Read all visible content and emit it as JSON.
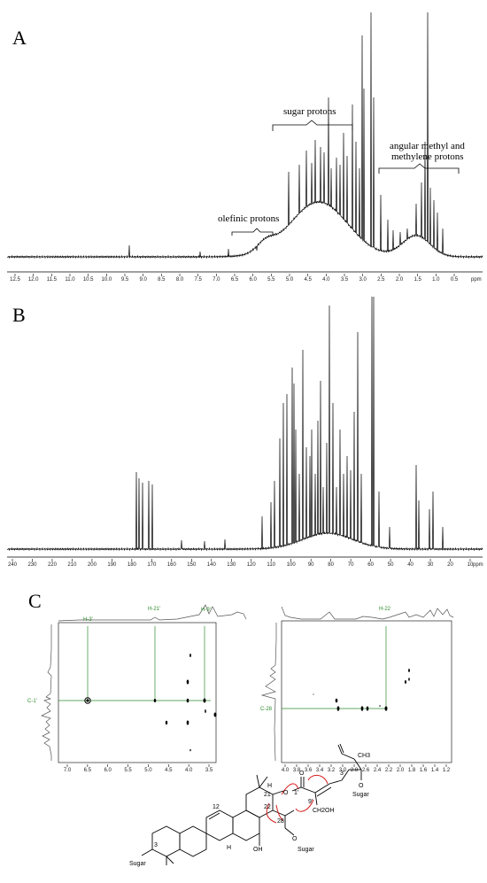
{
  "panels": {
    "a": {
      "label": "A",
      "annotations": {
        "olefinic": "olefinic protons",
        "sugar": "sugar protons",
        "angular_1": "angular methyl and",
        "angular_2": "methylene protons"
      },
      "axis_ticks": [
        "12.5",
        "12.0",
        "11.5",
        "11.0",
        "10.5",
        "10.0",
        "9.5",
        "9.0",
        "8.5",
        "8.0",
        "7.5",
        "7.0",
        "6.5",
        "6.0",
        "5.5",
        "5.0",
        "4.5",
        "4.0",
        "3.5",
        "3.0",
        "2.5",
        "2.0",
        "1.5",
        "1.0",
        "0.5"
      ],
      "axis_unit": "ppm"
    },
    "b": {
      "label": "B",
      "axis_ticks": [
        "240",
        "230",
        "220",
        "210",
        "200",
        "190",
        "180",
        "170",
        "160",
        "150",
        "140",
        "130",
        "120",
        "110",
        "100",
        "90",
        "80",
        "70",
        "60",
        "50",
        "40",
        "30",
        "20",
        "10"
      ],
      "axis_unit": "ppm"
    },
    "c": {
      "label": "C",
      "left": {
        "top_labels": [
          "H-3'",
          "H-21'",
          "H-9'"
        ],
        "side_label": "C-1'",
        "x_ticks": [
          "7.0",
          "6.5",
          "6.0",
          "5.5",
          "5.0",
          "4.5",
          "4.0",
          "3.5"
        ]
      },
      "right": {
        "top_label": "H-22",
        "side_label": "C-28",
        "x_ticks": [
          "4.0",
          "3.8",
          "3.6",
          "3.4",
          "3.2",
          "3.0",
          "2.8",
          "2.6",
          "2.4",
          "2.2",
          "2.0",
          "1.8",
          "1.6",
          "1.4",
          "1.2"
        ]
      },
      "structure": {
        "labels": [
          "CH3",
          "3'",
          "O",
          "Sugar",
          "9'",
          "CH2OH",
          "21",
          "22",
          "12",
          "28",
          "OH",
          "O",
          "Sugar",
          "3",
          "Sugar",
          "H",
          "H",
          "1'",
          "O",
          "O"
        ]
      }
    }
  },
  "colors": {
    "hmbc_line": "#2e8b2e",
    "arrow": "#d62020"
  }
}
